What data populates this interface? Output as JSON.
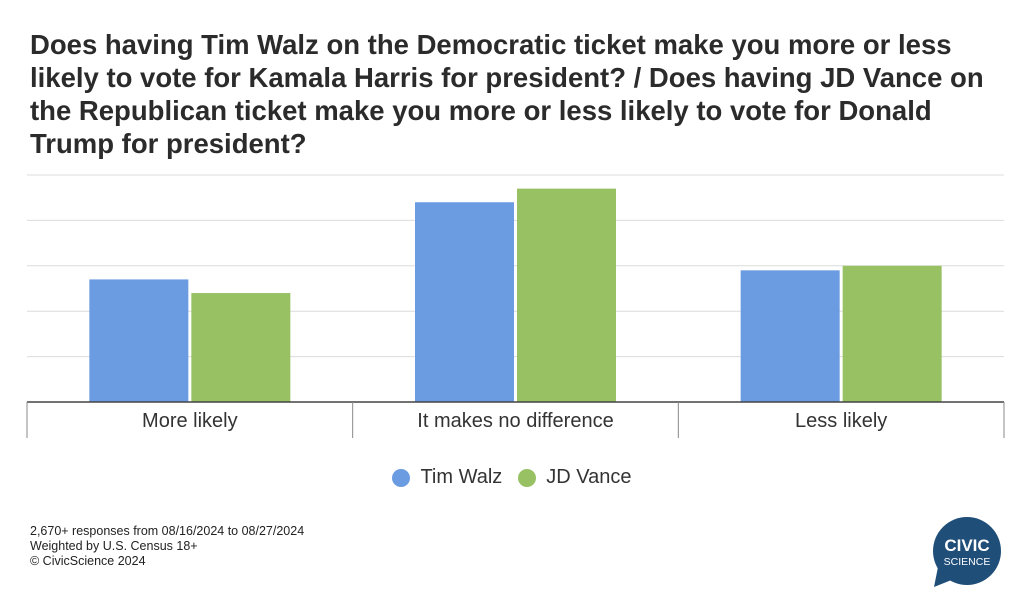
{
  "title": "Does having Tim Walz on the Democratic ticket make you more or less likely to vote for Kamala Harris for president? / Does having JD Vance on the Republican ticket make you more or less likely to vote for Donald Trump for president?",
  "footer": {
    "line1": "2,670+ responses from 08/16/2024 to 08/27/2024",
    "line2": "Weighted by U.S. Census 18+",
    "line3": "© CivicScience 2024"
  },
  "logo": {
    "line1": "CIVIC",
    "line2": "SCIENCE",
    "color": "#1f4e79"
  },
  "chart_data": {
    "type": "bar",
    "categories": [
      "More likely",
      "It makes no difference",
      "Less likely"
    ],
    "series": [
      {
        "name": "Tim Walz",
        "color": "#6b9be0",
        "values": [
          27,
          44,
          29
        ]
      },
      {
        "name": "JD Vance",
        "color": "#98c164",
        "values": [
          24,
          47,
          30
        ]
      }
    ],
    "ylim": [
      0,
      50
    ],
    "grid": true,
    "legend": "bottom-center"
  }
}
